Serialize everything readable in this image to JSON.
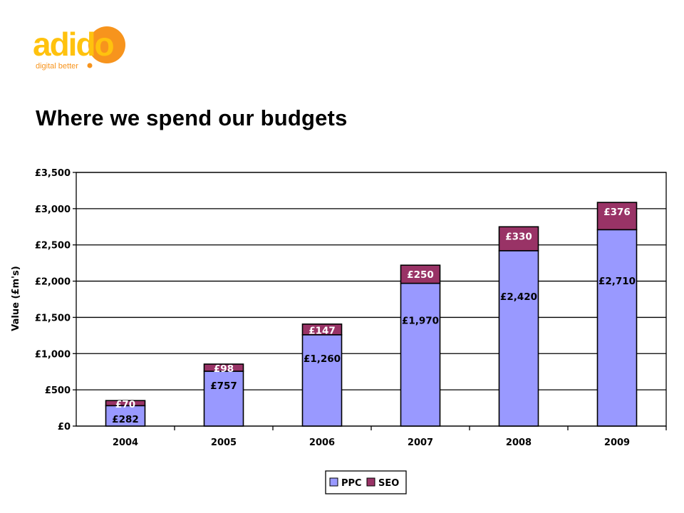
{
  "logo": {
    "wordmark": "adido",
    "tagline": "digital better",
    "colors": {
      "primary": "#f7941d",
      "secondary": "#ffc20e"
    }
  },
  "slide": {
    "title": "Where we spend our budgets"
  },
  "chart_data": {
    "type": "bar",
    "stacked": true,
    "title": "",
    "xlabel": "",
    "ylabel": "Value (£m's)",
    "ylim": [
      0,
      3500
    ],
    "yticks": [
      0,
      500,
      1000,
      1500,
      2000,
      2500,
      3000,
      3500
    ],
    "ytick_labels": [
      "£0",
      "£500",
      "£1,000",
      "£1,500",
      "£2,000",
      "£2,500",
      "£3,000",
      "£3,500"
    ],
    "grid": true,
    "legend_position": "bottom",
    "categories": [
      "2004",
      "2005",
      "2006",
      "2007",
      "2008",
      "2009"
    ],
    "series": [
      {
        "name": "PPC",
        "color": "#9999ff",
        "values": [
          282,
          757,
          1260,
          1970,
          2420,
          2710
        ],
        "labels": [
          "£282",
          "£757",
          "£1,260",
          "£1,970",
          "£2,420",
          "£2,710"
        ]
      },
      {
        "name": "SEO",
        "color": "#993366",
        "values": [
          70,
          98,
          147,
          250,
          330,
          376
        ],
        "labels": [
          "£70",
          "£98",
          "£147",
          "£250",
          "£330",
          "£376"
        ]
      }
    ]
  }
}
